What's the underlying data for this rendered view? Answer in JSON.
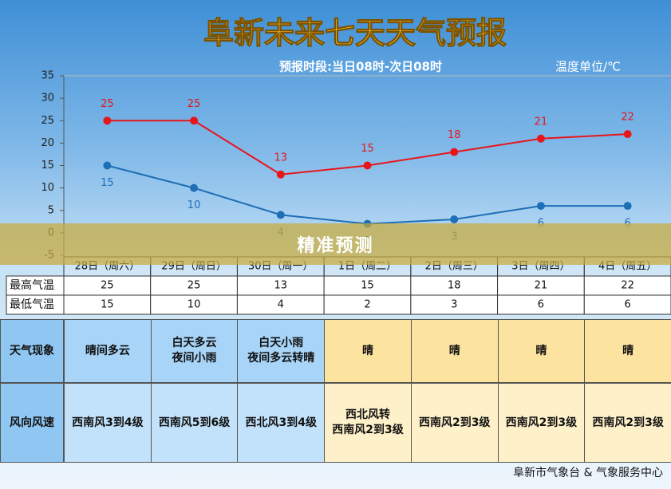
{
  "chart_data": {
    "type": "line",
    "title": "阜新未来七天天气预报",
    "subtitle": "预报时段:当日08时-次日08时",
    "unit_label": "温度单位/℃",
    "categories": [
      "28日（周六）",
      "29日（周日）",
      "30日（周一）",
      "1日（周二）",
      "2日（周三）",
      "3日（周四）",
      "4日（周五）"
    ],
    "series": [
      {
        "name": "最高气温",
        "color": "#e8151b",
        "values": [
          25,
          25,
          13,
          15,
          18,
          21,
          22
        ]
      },
      {
        "name": "最低气温",
        "color": "#1e6fb5",
        "values": [
          15,
          10,
          4,
          2,
          3,
          6,
          6
        ]
      }
    ],
    "ylim": [
      -5,
      35
    ],
    "yticks": [
      -5,
      0,
      5,
      10,
      15,
      20,
      25,
      30,
      35
    ]
  },
  "forecast_table": {
    "rows": [
      {
        "label": "天气现象",
        "cells": [
          "晴间多云",
          "白天多云\n夜间小雨",
          "白天小雨\n夜间多云转晴",
          "晴",
          "晴",
          "晴",
          "晴"
        ]
      },
      {
        "label": "风向风速",
        "cells": [
          "西南风3到4级",
          "西南风5到6级",
          "西北风3到4级",
          "西北风转\n西南风2到3级",
          "西南风2到3级",
          "西南风2到3级",
          "西南风2到3级"
        ]
      }
    ]
  },
  "banner": "精准预测",
  "footer": "阜新市气象台 & 气象服务中心"
}
